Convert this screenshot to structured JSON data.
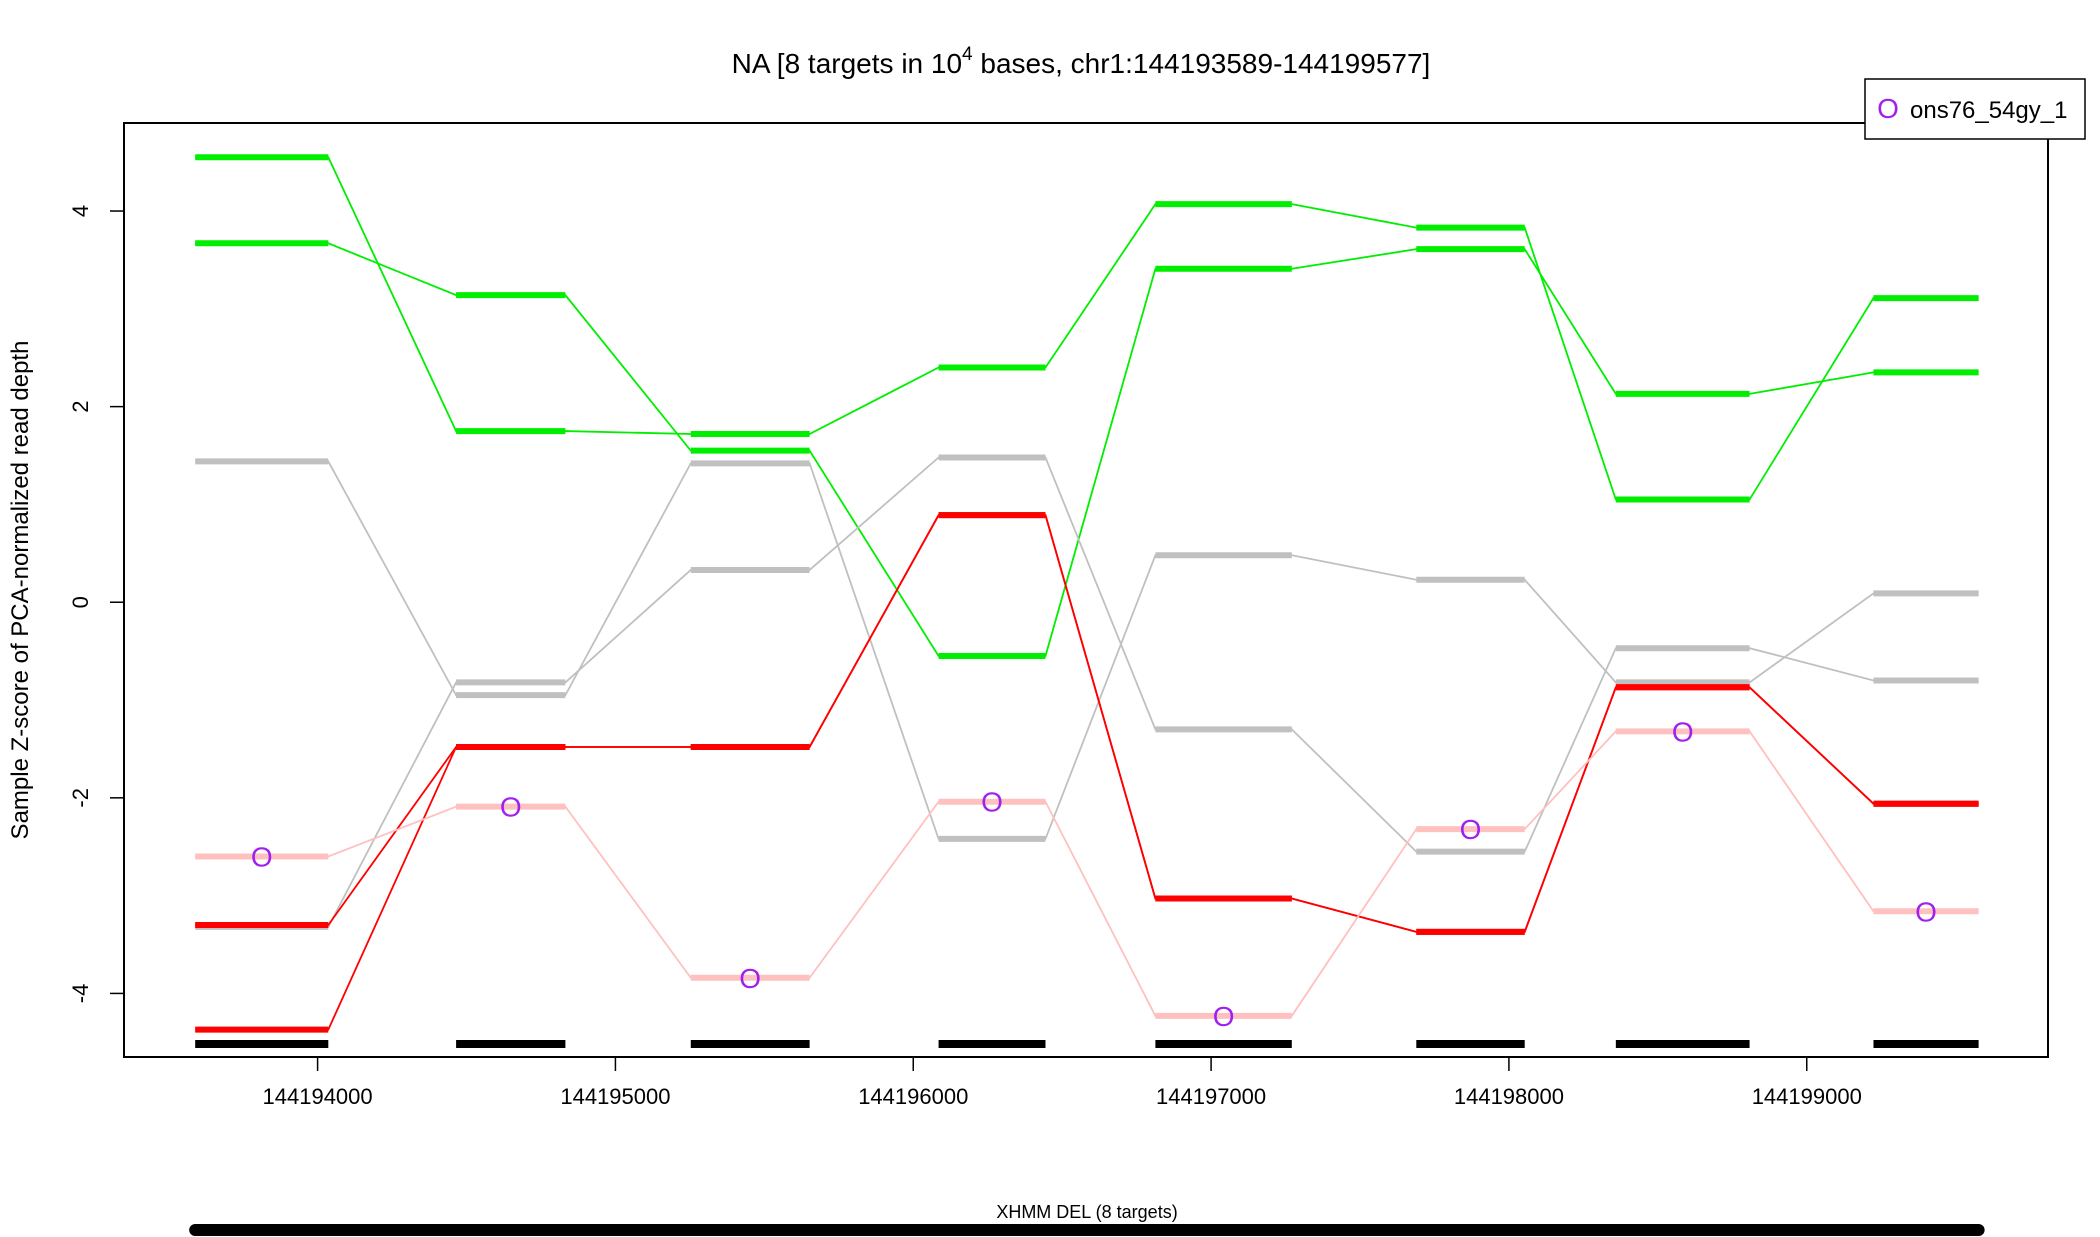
{
  "chart_data": {
    "type": "line",
    "title": "NA [8 targets in 10",
    "title_superscript": "4",
    "title_suffix": " bases, chr1:144193589-144199577]",
    "xlabel": "",
    "ylabel": "Sample Z-score of PCA-normalized read depth",
    "xlim": [
      144193350,
      144199810
    ],
    "ylim": [
      -4.65,
      4.9
    ],
    "grid": false,
    "legend_position": "top-right",
    "x_ticks": [
      144194000,
      144195000,
      144196000,
      144197000,
      144198000,
      144199000
    ],
    "x_tick_labels": [
      "144194000",
      "144195000",
      "144196000",
      "144197000",
      "144198000",
      "144199000"
    ],
    "y_ticks": [
      -4,
      -2,
      0,
      2,
      4
    ],
    "y_tick_labels": [
      "-4",
      "-2",
      "0",
      "2",
      "4"
    ],
    "targets": [
      {
        "start": 144193589,
        "end": 144194036
      },
      {
        "start": 144194465,
        "end": 144194832
      },
      {
        "start": 144195253,
        "end": 144195652
      },
      {
        "start": 144196085,
        "end": 144196444
      },
      {
        "start": 144196813,
        "end": 144197271
      },
      {
        "start": 144197689,
        "end": 144198053
      },
      {
        "start": 144198359,
        "end": 144198808
      },
      {
        "start": 144199224,
        "end": 144199577
      }
    ],
    "series": [
      {
        "color": "#00ee00",
        "role": "high",
        "values": [
          4.55,
          1.75,
          1.72,
          2.4,
          4.07,
          3.83,
          1.05,
          3.11
        ]
      },
      {
        "color": "#00ee00",
        "role": "high",
        "values": [
          3.67,
          3.14,
          1.55,
          -0.55,
          3.41,
          3.61,
          2.13,
          2.35
        ]
      },
      {
        "color": "#c0c0c0",
        "role": "normal",
        "values": [
          1.44,
          -0.95,
          1.42,
          -2.42,
          0.48,
          0.23,
          -0.82,
          0.09
        ]
      },
      {
        "color": "#c0c0c0",
        "role": "normal",
        "values": [
          -3.32,
          -0.82,
          0.33,
          1.48,
          -1.3,
          -2.55,
          -0.47,
          -0.8
        ]
      },
      {
        "color": "#ff0000",
        "role": "low",
        "values": [
          -3.3,
          -1.48,
          -1.48,
          0.89,
          -3.03,
          -3.37,
          -0.87,
          -2.06
        ]
      },
      {
        "color": "#ff0000",
        "role": "low",
        "values": [
          -4.37,
          -1.48,
          -1.48,
          0.89,
          -3.03,
          -3.37,
          -0.87,
          -2.06
        ]
      },
      {
        "color": "#ffc0c0",
        "role": "sample",
        "name": "ons76_54gy_1",
        "marker": "O",
        "marker_color": "#a020f0",
        "values": [
          -2.6,
          -2.09,
          -3.84,
          -2.04,
          -4.23,
          -2.32,
          -1.32,
          -3.16
        ]
      }
    ],
    "legend": [
      {
        "marker": "O",
        "color": "#a020f0",
        "label": "ons76_54gy_1"
      }
    ],
    "bottom_track": {
      "label": "XHMM DEL (8 targets)",
      "start": 144193589,
      "end": 144199577
    }
  }
}
